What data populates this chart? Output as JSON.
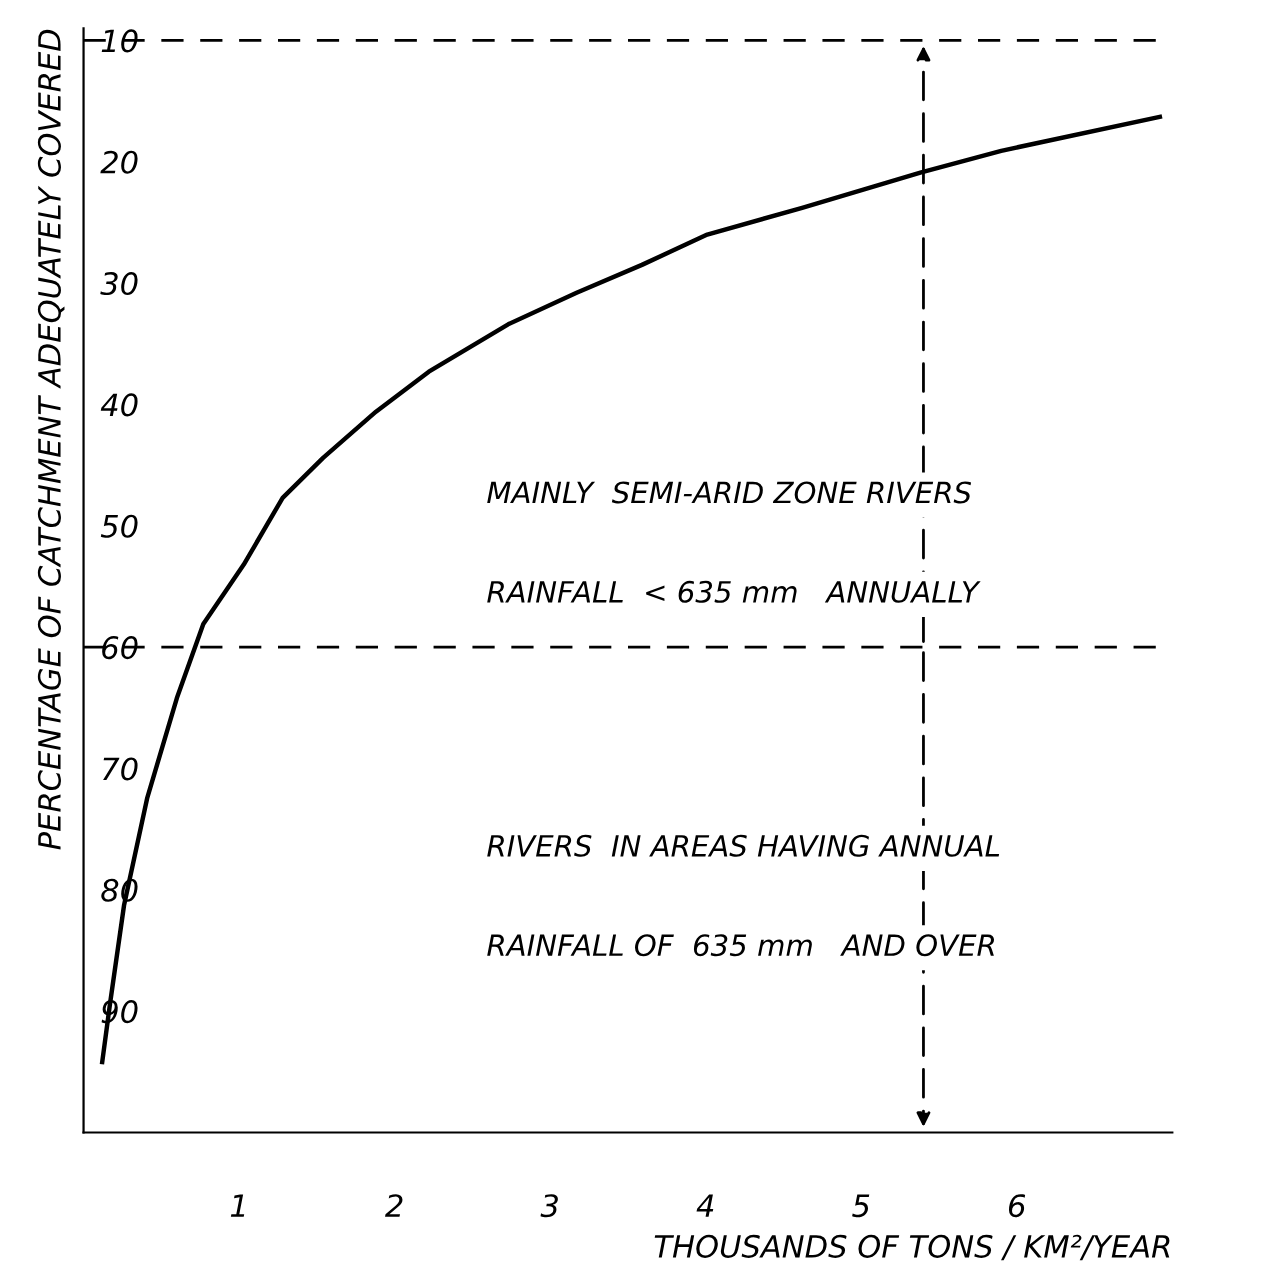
{
  "chart_data": {
    "type": "line",
    "xlabel": "THOUSANDS OF TONS / KM²/YEAR",
    "ylabel": "PERCENTAGE OF CATCHMENT ADEQUATELY COVERED",
    "x": [
      0.12,
      0.17,
      0.26,
      0.41,
      0.6,
      0.77,
      1.03,
      1.28,
      1.54,
      1.88,
      2.22,
      2.73,
      3.17,
      3.59,
      4.01,
      4.62,
      5.38,
      5.9,
      6.92
    ],
    "series": [
      {
        "color": "#000000",
        "values": [
          94.2,
          89.4,
          81.3,
          72.4,
          64.2,
          58.1,
          53.2,
          47.7,
          44.4,
          40.6,
          37.3,
          33.4,
          30.8,
          28.5,
          26.0,
          23.8,
          20.9,
          19.1,
          16.3
        ]
      }
    ],
    "xlim": [
      0,
      7.0
    ],
    "ylim": [
      100,
      9
    ],
    "xticks": [
      1,
      2,
      3,
      4,
      5,
      6
    ],
    "yticks": [
      10,
      20,
      30,
      40,
      50,
      60,
      70,
      80,
      90
    ],
    "ref_lines": [
      {
        "axis": "y",
        "value": 10,
        "line_style": "dashed",
        "color": "#000000"
      },
      {
        "axis": "y",
        "value": 60,
        "line_style": "dashed",
        "color": "#000000"
      }
    ],
    "annotations": [
      "MAINLY  SEMI-ARID ZONE RIVERS",
      "RAINFALL  < 635 mm   ANNUALLY",
      "RIVERS  IN AREAS HAVING ANNUAL",
      "RAINFALL OF  635 mm   AND OVER"
    ],
    "grid": false,
    "marker": "none",
    "line_style": "solid"
  }
}
